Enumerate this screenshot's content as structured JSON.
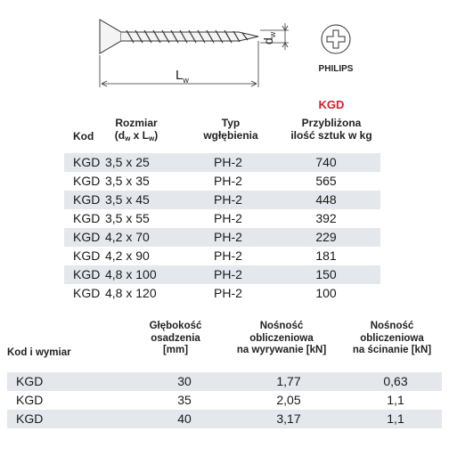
{
  "drawing": {
    "dim_d": "d",
    "dim_d_sub": "w",
    "dim_l": "L",
    "dim_l_sub": "w",
    "drive_label": "PHILIPS"
  },
  "table1": {
    "product_code": "KGD",
    "headers": {
      "kod": "Kod",
      "rozmiar_line1": "Rozmiar",
      "rozmiar_line2_a": "(d",
      "rozmiar_sub1": "w",
      "rozmiar_line2_b": " x L",
      "rozmiar_sub2": "w",
      "rozmiar_line2_c": ")",
      "typ_line1": "Typ",
      "typ_line2": "wgłębienia",
      "qty_line1": "Przybliżona",
      "qty_line2": "ilość sztuk w kg"
    },
    "rows": [
      {
        "kod": "KGD",
        "size": "3,5 x 25",
        "type": "PH-2",
        "qty": "740"
      },
      {
        "kod": "KGD",
        "size": "3,5 x 35",
        "type": "PH-2",
        "qty": "565"
      },
      {
        "kod": "KGD",
        "size": "3,5 x 45",
        "type": "PH-2",
        "qty": "448"
      },
      {
        "kod": "KGD",
        "size": "3,5 x 55",
        "type": "PH-2",
        "qty": "392"
      },
      {
        "kod": "KGD",
        "size": "4,2 x 70",
        "type": "PH-2",
        "qty": "229"
      },
      {
        "kod": "KGD",
        "size": "4,2 x 90",
        "type": "PH-2",
        "qty": "181"
      },
      {
        "kod": "KGD",
        "size": "4,8 x 100",
        "type": "PH-2",
        "qty": "150"
      },
      {
        "kod": "KGD",
        "size": "4,8 x 120",
        "type": "PH-2",
        "qty": "100"
      }
    ]
  },
  "table2": {
    "headers": {
      "kod": "Kod i wymiar",
      "depth_line1": "Głębokość",
      "depth_line2": "osadzenia",
      "depth_line3": "[mm]",
      "pull_line1": "Nośność",
      "pull_line2": "obliczeniowa",
      "pull_line3": "na wyrywanie [kN]",
      "shear_line1": "Nośność",
      "shear_line2": "obliczeniowa",
      "shear_line3": "na ścinanie [kN]"
    },
    "rows": [
      {
        "kod": "KGD",
        "depth": "30",
        "pull": "1,77",
        "shear": "0,63"
      },
      {
        "kod": "KGD",
        "depth": "35",
        "pull": "2,05",
        "shear": "1,1"
      },
      {
        "kod": "KGD",
        "depth": "40",
        "pull": "3,17",
        "shear": "1,1"
      }
    ]
  },
  "colors": {
    "accent_red": "#d4202a",
    "row_shade": "#e4e7ec"
  }
}
